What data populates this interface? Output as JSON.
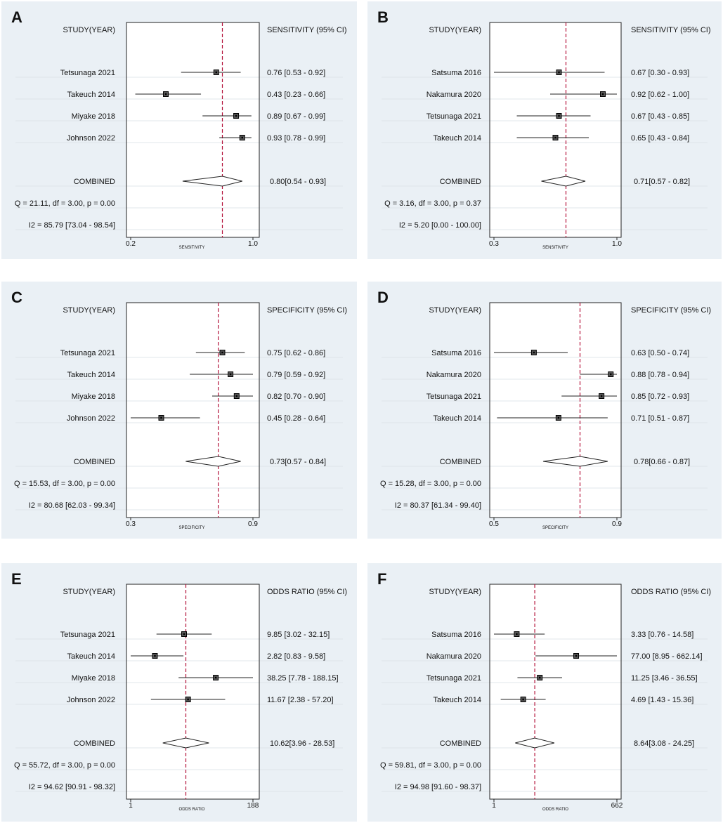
{
  "colors": {
    "panel_bg": "#eaf0f5",
    "line": "#222222",
    "ref_line": "#b3123a",
    "grid": "#d9dfe5",
    "marker": "#555555"
  },
  "chart_data": [
    {
      "type": "forest",
      "label": "A",
      "study_header": "STUDY(YEAR)",
      "estimate_header": "SENSITIVITY (95% CI)",
      "xlabel": "SENSITIVITY",
      "xlim": [
        0.2,
        1.0
      ],
      "tick_labels": [
        "0.2",
        "1.0"
      ],
      "pooled_line": 0.8,
      "studies": [
        {
          "name": "Tetsunaga 2021",
          "est": 0.76,
          "lo": 0.53,
          "hi": 0.92,
          "text": "0.76 [0.53 - 0.92]"
        },
        {
          "name": "Takeuch 2014",
          "est": 0.43,
          "lo": 0.23,
          "hi": 0.66,
          "text": "0.43 [0.23 - 0.66]"
        },
        {
          "name": "Miyake 2018",
          "est": 0.89,
          "lo": 0.67,
          "hi": 0.99,
          "text": "0.89 [0.67 - 0.99]"
        },
        {
          "name": "Johnson 2022",
          "est": 0.93,
          "lo": 0.78,
          "hi": 0.99,
          "text": "0.93 [0.78 - 0.99]"
        }
      ],
      "combined": {
        "name": "COMBINED",
        "est": 0.8,
        "lo": 0.54,
        "hi": 0.93,
        "text": "0.80[0.54 - 0.93]"
      },
      "q_text": "Q = 21.11, df = 3.00, p =  0.00",
      "i2_text": "I2 = 85.79 [73.04 - 98.54]"
    },
    {
      "type": "forest",
      "label": "B",
      "study_header": "STUDY(YEAR)",
      "estimate_header": "SENSITIVITY (95% CI)",
      "xlabel": "SENSITIVITY",
      "xlim": [
        0.3,
        1.0
      ],
      "tick_labels": [
        "0.3",
        "1.0"
      ],
      "pooled_line": 0.71,
      "studies": [
        {
          "name": "Satsuma 2016",
          "est": 0.67,
          "lo": 0.3,
          "hi": 0.93,
          "text": "0.67 [0.30 - 0.93]"
        },
        {
          "name": "Nakamura 2020",
          "est": 0.92,
          "lo": 0.62,
          "hi": 1.0,
          "text": "0.92 [0.62 - 1.00]"
        },
        {
          "name": "Tetsunaga 2021",
          "est": 0.67,
          "lo": 0.43,
          "hi": 0.85,
          "text": "0.67 [0.43 - 0.85]"
        },
        {
          "name": "Takeuch 2014",
          "est": 0.65,
          "lo": 0.43,
          "hi": 0.84,
          "text": "0.65 [0.43 - 0.84]"
        }
      ],
      "combined": {
        "name": "COMBINED",
        "est": 0.71,
        "lo": 0.57,
        "hi": 0.82,
        "text": "0.71[0.57 - 0.82]"
      },
      "q_text": "Q =  3.16, df = 3.00, p =  0.37",
      "i2_text": "I2 = 5.20 [0.00 - 100.00]"
    },
    {
      "type": "forest",
      "label": "C",
      "study_header": "STUDY(YEAR)",
      "estimate_header": "SPECIFICITY (95% CI)",
      "xlabel": "SPECIFICITY",
      "xlim": [
        0.3,
        0.9
      ],
      "tick_labels": [
        "0.3",
        "0.9"
      ],
      "pooled_line": 0.73,
      "studies": [
        {
          "name": "Tetsunaga 2021",
          "est": 0.75,
          "lo": 0.62,
          "hi": 0.86,
          "text": "0.75 [0.62 - 0.86]"
        },
        {
          "name": "Takeuch 2014",
          "est": 0.79,
          "lo": 0.59,
          "hi": 0.92,
          "text": "0.79 [0.59 - 0.92]"
        },
        {
          "name": "Miyake 2018",
          "est": 0.82,
          "lo": 0.7,
          "hi": 0.9,
          "text": "0.82 [0.70 - 0.90]"
        },
        {
          "name": "Johnson 2022",
          "est": 0.45,
          "lo": 0.28,
          "hi": 0.64,
          "text": "0.45 [0.28 - 0.64]"
        }
      ],
      "combined": {
        "name": "COMBINED",
        "est": 0.73,
        "lo": 0.57,
        "hi": 0.84,
        "text": "0.73[0.57 - 0.84]"
      },
      "q_text": "Q = 15.53, df = 3.00, p =  0.00",
      "i2_text": "I2 = 80.68 [62.03 - 99.34]"
    },
    {
      "type": "forest",
      "label": "D",
      "study_header": "STUDY(YEAR)",
      "estimate_header": "SPECIFICITY (95% CI)",
      "xlabel": "SPECIFICITY",
      "xlim": [
        0.5,
        0.9
      ],
      "tick_labels": [
        "0.5",
        "0.9"
      ],
      "pooled_line": 0.78,
      "studies": [
        {
          "name": "Satsuma 2016",
          "est": 0.63,
          "lo": 0.5,
          "hi": 0.74,
          "text": "0.63 [0.50 - 0.74]"
        },
        {
          "name": "Nakamura 2020",
          "est": 0.88,
          "lo": 0.78,
          "hi": 0.94,
          "text": "0.88 [0.78 - 0.94]"
        },
        {
          "name": "Tetsunaga 2021",
          "est": 0.85,
          "lo": 0.72,
          "hi": 0.93,
          "text": "0.85 [0.72 - 0.93]"
        },
        {
          "name": "Takeuch 2014",
          "est": 0.71,
          "lo": 0.51,
          "hi": 0.87,
          "text": "0.71 [0.51 - 0.87]"
        }
      ],
      "combined": {
        "name": "COMBINED",
        "est": 0.78,
        "lo": 0.66,
        "hi": 0.87,
        "text": "0.78[0.66 - 0.87]"
      },
      "q_text": "Q = 15.28, df = 3.00, p =  0.00",
      "i2_text": "I2 = 80.37 [61.34 - 99.40]"
    },
    {
      "type": "forest",
      "label": "E",
      "study_header": "STUDY(YEAR)",
      "estimate_header": "ODDS RATIO (95% CI)",
      "xlabel": "ODDS RATIO",
      "xlim": [
        1,
        188
      ],
      "scale": "log",
      "tick_labels": [
        "1",
        "188"
      ],
      "pooled_line": 10.62,
      "studies": [
        {
          "name": "Tetsunaga 2021",
          "est": 9.85,
          "lo": 3.02,
          "hi": 32.15,
          "text": "9.85 [3.02 - 32.15]"
        },
        {
          "name": "Takeuch 2014",
          "est": 2.82,
          "lo": 0.83,
          "hi": 9.58,
          "text": "2.82 [0.83 - 9.58]"
        },
        {
          "name": "Miyake 2018",
          "est": 38.25,
          "lo": 7.78,
          "hi": 188.15,
          "text": "38.25 [7.78 - 188.15]"
        },
        {
          "name": "Johnson 2022",
          "est": 11.67,
          "lo": 2.38,
          "hi": 57.2,
          "text": "11.67 [2.38 - 57.20]"
        }
      ],
      "combined": {
        "name": "COMBINED",
        "est": 10.62,
        "lo": 3.96,
        "hi": 28.53,
        "text": "10.62[3.96 - 28.53]"
      },
      "q_text": "Q = 55.72, df = 3.00, p =  0.00",
      "i2_text": "I2 = 94.62 [90.91 - 98.32]"
    },
    {
      "type": "forest",
      "label": "F",
      "study_header": "STUDY(YEAR)",
      "estimate_header": "ODDS RATIO (95% CI)",
      "xlabel": "ODDS RATIO",
      "xlim": [
        1,
        662
      ],
      "scale": "log",
      "tick_labels": [
        "1",
        "662"
      ],
      "pooled_line": 8.64,
      "studies": [
        {
          "name": "Satsuma 2016",
          "est": 3.33,
          "lo": 0.76,
          "hi": 14.58,
          "text": "3.33 [0.76 - 14.58]"
        },
        {
          "name": "Nakamura 2020",
          "est": 77.0,
          "lo": 8.95,
          "hi": 662.14,
          "text": "77.00 [8.95 - 662.14]"
        },
        {
          "name": "Tetsunaga 2021",
          "est": 11.25,
          "lo": 3.46,
          "hi": 36.55,
          "text": "11.25 [3.46 - 36.55]"
        },
        {
          "name": "Takeuch 2014",
          "est": 4.69,
          "lo": 1.43,
          "hi": 15.36,
          "text": "4.69 [1.43 - 15.36]"
        }
      ],
      "combined": {
        "name": "COMBINED",
        "est": 8.64,
        "lo": 3.08,
        "hi": 24.25,
        "text": "8.64[3.08 - 24.25]"
      },
      "q_text": "Q = 59.81, df = 3.00, p =  0.00",
      "i2_text": "I2 = 94.98 [91.60 - 98.37]"
    }
  ]
}
